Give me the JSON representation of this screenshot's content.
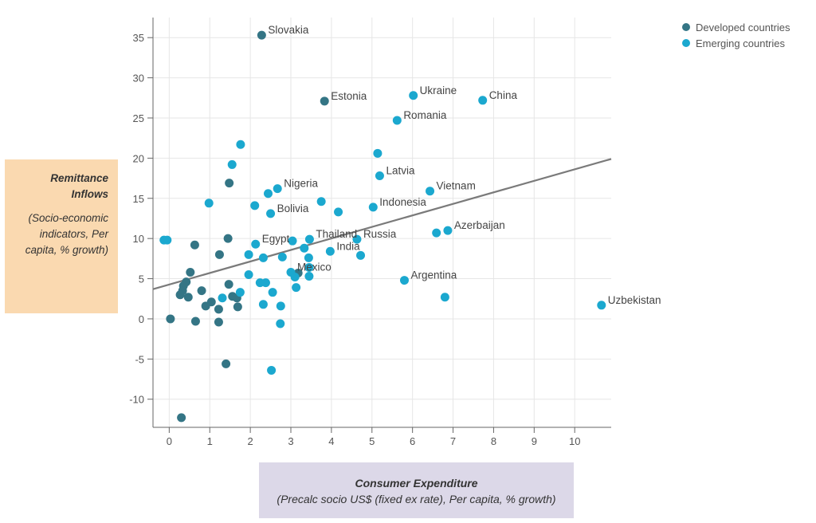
{
  "chart_data": {
    "type": "scatter",
    "title": "",
    "xlabel": "Consumer Expenditure",
    "xlabel_sub": "(Precalc socio US$ (fixed ex rate), Per capita, % growth)",
    "ylabel": "Remittance Inflows",
    "ylabel_sub": "(Socio-economic indicators, Per capita, % growth)",
    "xlim": [
      -0.4,
      10.9
    ],
    "ylim": [
      -13.5,
      37.5
    ],
    "x_ticks": [
      0,
      1,
      2,
      3,
      4,
      5,
      6,
      7,
      8,
      9,
      10
    ],
    "y_ticks": [
      -10,
      -5,
      0,
      5,
      10,
      15,
      20,
      25,
      30,
      35
    ],
    "grid": true,
    "legend_position": "top-right",
    "trend_line": {
      "x": [
        -0.4,
        10.9
      ],
      "y": [
        3.7,
        19.9
      ]
    },
    "series": [
      {
        "name": "Developed countries",
        "color": "#347585",
        "points": [
          {
            "x": 2.28,
            "y": 35.3,
            "label": "Slovakia"
          },
          {
            "x": 3.83,
            "y": 27.1,
            "label": "Estonia"
          },
          {
            "x": 1.48,
            "y": 16.9
          },
          {
            "x": 1.45,
            "y": 10.0
          },
          {
            "x": 0.63,
            "y": 9.2
          },
          {
            "x": 1.24,
            "y": 8.0
          },
          {
            "x": 0.52,
            "y": 5.8
          },
          {
            "x": 3.18,
            "y": 5.7
          },
          {
            "x": 0.42,
            "y": 4.6
          },
          {
            "x": 0.35,
            "y": 4.1
          },
          {
            "x": 1.47,
            "y": 4.3
          },
          {
            "x": 0.33,
            "y": 3.5
          },
          {
            "x": 0.8,
            "y": 3.5
          },
          {
            "x": 0.27,
            "y": 3.0
          },
          {
            "x": 0.47,
            "y": 2.7
          },
          {
            "x": 1.56,
            "y": 2.8
          },
          {
            "x": 1.67,
            "y": 2.6
          },
          {
            "x": 1.04,
            "y": 2.1
          },
          {
            "x": 0.9,
            "y": 1.6
          },
          {
            "x": 1.69,
            "y": 1.5
          },
          {
            "x": 1.22,
            "y": 1.2
          },
          {
            "x": 0.03,
            "y": 0.0
          },
          {
            "x": 0.65,
            "y": -0.3
          },
          {
            "x": 1.22,
            "y": -0.4
          },
          {
            "x": 1.4,
            "y": -5.6
          },
          {
            "x": 0.3,
            "y": -12.3
          }
        ]
      },
      {
        "name": "Emerging countries",
        "color": "#1ba8cf",
        "points": [
          {
            "x": 6.02,
            "y": 27.8,
            "label": "Ukraine"
          },
          {
            "x": 7.73,
            "y": 27.2,
            "label": "China"
          },
          {
            "x": 5.62,
            "y": 24.7,
            "label": "Romania"
          },
          {
            "x": 1.76,
            "y": 21.7
          },
          {
            "x": 5.14,
            "y": 20.6
          },
          {
            "x": 1.55,
            "y": 19.2
          },
          {
            "x": 5.19,
            "y": 17.8,
            "label": "Latvia"
          },
          {
            "x": 2.67,
            "y": 16.2,
            "label": "Nigeria"
          },
          {
            "x": 6.43,
            "y": 15.9,
            "label": "Vietnam"
          },
          {
            "x": 2.44,
            "y": 15.6
          },
          {
            "x": 3.75,
            "y": 14.6
          },
          {
            "x": 0.98,
            "y": 14.4
          },
          {
            "x": 2.11,
            "y": 14.1
          },
          {
            "x": 5.03,
            "y": 13.9,
            "label": "Indonesia"
          },
          {
            "x": 2.5,
            "y": 13.1,
            "label": "Bolivia"
          },
          {
            "x": 4.17,
            "y": 13.3
          },
          {
            "x": 6.87,
            "y": 11.0,
            "label": "Azerbaijan"
          },
          {
            "x": 6.59,
            "y": 10.7
          },
          {
            "x": -0.13,
            "y": 9.8
          },
          {
            "x": -0.05,
            "y": 9.8
          },
          {
            "x": 3.46,
            "y": 9.9,
            "label": "Thailand"
          },
          {
            "x": 4.63,
            "y": 9.9,
            "label": "Russia"
          },
          {
            "x": 3.04,
            "y": 9.7
          },
          {
            "x": 2.13,
            "y": 9.3,
            "label": "Egypt"
          },
          {
            "x": 3.33,
            "y": 8.8
          },
          {
            "x": 3.97,
            "y": 8.4,
            "label": "India"
          },
          {
            "x": 1.96,
            "y": 8.0
          },
          {
            "x": 4.72,
            "y": 7.9
          },
          {
            "x": 2.79,
            "y": 7.7
          },
          {
            "x": 2.32,
            "y": 7.6
          },
          {
            "x": 3.44,
            "y": 7.6
          },
          {
            "x": 3.45,
            "y": 6.4
          },
          {
            "x": 3.0,
            "y": 5.8,
            "label": "Mexico"
          },
          {
            "x": 1.96,
            "y": 5.5
          },
          {
            "x": 3.45,
            "y": 5.3
          },
          {
            "x": 3.1,
            "y": 5.2
          },
          {
            "x": 5.8,
            "y": 4.8,
            "label": "Argentina"
          },
          {
            "x": 2.24,
            "y": 4.5
          },
          {
            "x": 2.38,
            "y": 4.5
          },
          {
            "x": 3.13,
            "y": 3.9
          },
          {
            "x": 1.75,
            "y": 3.3
          },
          {
            "x": 2.55,
            "y": 3.3
          },
          {
            "x": 6.8,
            "y": 2.7
          },
          {
            "x": 1.31,
            "y": 2.6
          },
          {
            "x": 2.32,
            "y": 1.8
          },
          {
            "x": 2.75,
            "y": 1.6
          },
          {
            "x": 10.66,
            "y": 1.7,
            "label": "Uzbekistan"
          },
          {
            "x": 2.74,
            "y": -0.6
          },
          {
            "x": 2.52,
            "y": -6.4
          }
        ]
      }
    ]
  }
}
